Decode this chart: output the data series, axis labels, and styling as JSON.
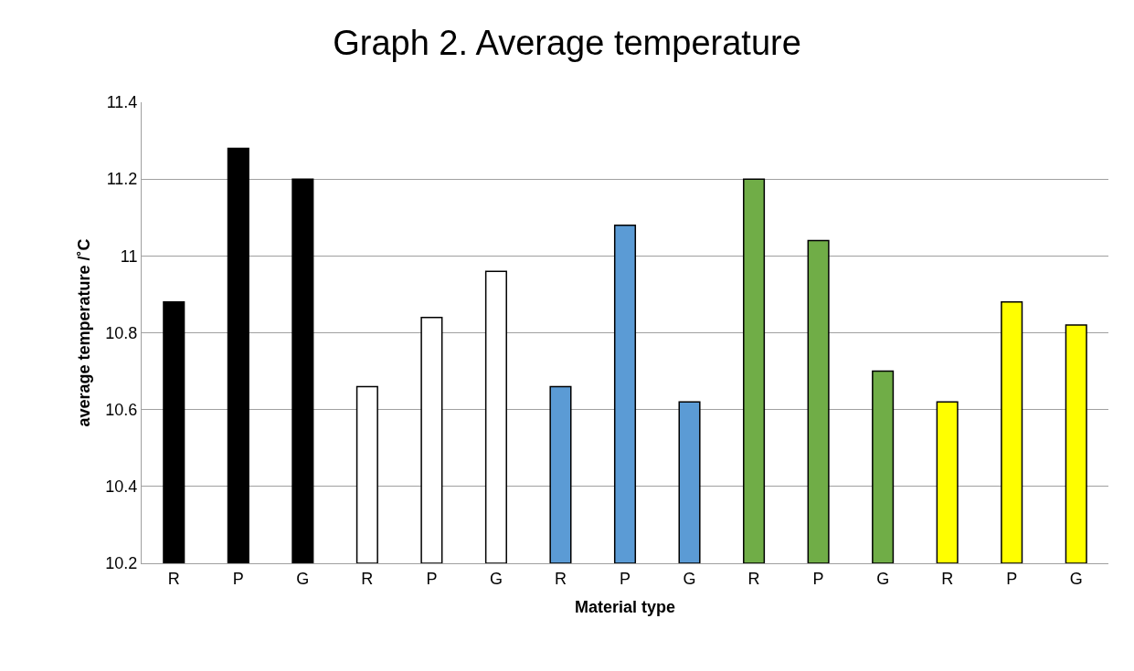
{
  "chart_data": {
    "type": "bar",
    "title": "Graph 2. Average temperature",
    "xlabel": "Material type",
    "ylabel": "average temperature /˚C",
    "categories": [
      "R",
      "P",
      "G",
      "R",
      "P",
      "G",
      "R",
      "P",
      "G",
      "R",
      "P",
      "G",
      "R",
      "P",
      "G"
    ],
    "values": [
      10.88,
      11.28,
      11.2,
      10.66,
      10.84,
      10.96,
      10.66,
      11.08,
      10.62,
      11.2,
      11.04,
      10.7,
      10.62,
      10.88,
      10.82
    ],
    "colors": [
      "#000000",
      "#000000",
      "#000000",
      "#ffffff",
      "#ffffff",
      "#ffffff",
      "#5b9bd5",
      "#5b9bd5",
      "#5b9bd5",
      "#70ad47",
      "#70ad47",
      "#70ad47",
      "#ffff00",
      "#ffff00",
      "#ffff00"
    ],
    "ylim": [
      10.2,
      11.4
    ],
    "yticks": [
      10.2,
      10.4,
      10.6,
      10.8,
      11,
      11.2,
      11.4
    ],
    "grid": "y"
  }
}
